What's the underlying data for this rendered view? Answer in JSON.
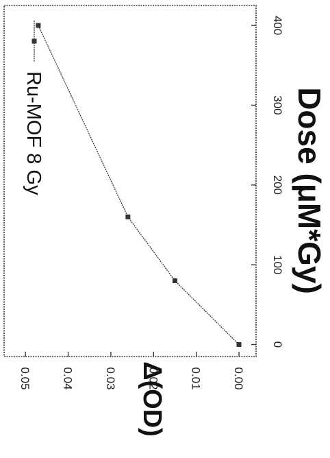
{
  "chart_data": {
    "type": "line",
    "orientation": "rotated-90-clockwise",
    "title": "",
    "xlabel": "Dose (μM*Gy)",
    "ylabel": "Δ(OD)",
    "xlim": [
      -15,
      425
    ],
    "ylim": [
      -0.004,
      0.055
    ],
    "xticks": [
      0,
      100,
      200,
      300,
      400
    ],
    "yticks": [
      0.0,
      0.01,
      0.02,
      0.03,
      0.04,
      0.05
    ],
    "ytick_labels": [
      "0.00",
      "0.01",
      "0.02",
      "0.03",
      "0.04",
      "0.05"
    ],
    "grid": false,
    "legend_position": "top-left",
    "series": [
      {
        "name": "Ru-MOF 8 Gy",
        "color": "#333333",
        "marker": "square",
        "x": [
          0,
          80,
          160,
          400
        ],
        "y": [
          0.0,
          0.015,
          0.026,
          0.047
        ]
      }
    ]
  }
}
